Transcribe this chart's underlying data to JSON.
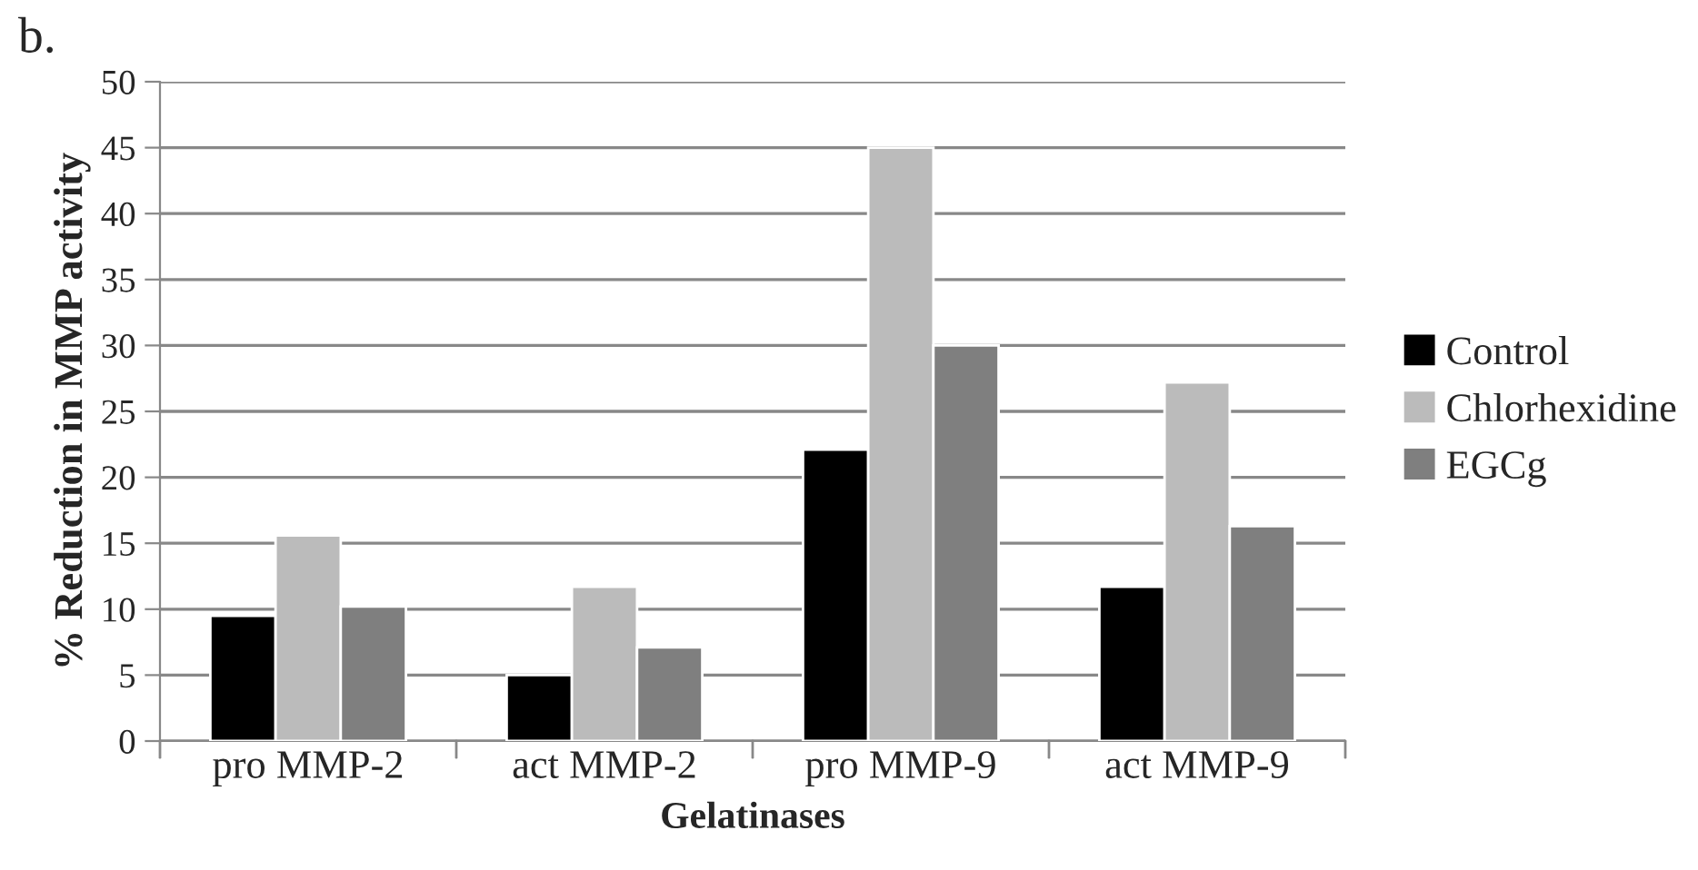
{
  "chart_data": {
    "type": "bar",
    "xlabel": "Gelatinases",
    "ylabel": "% Reduction in MMP activity",
    "annotations": [
      "b."
    ],
    "categories": [
      "pro MMP-2",
      "act MMP-2",
      "pro MMP-9",
      "act MMP-9"
    ],
    "series": [
      {
        "name": "Control",
        "color": "#000000",
        "values": [
          9.5,
          5.0,
          22.1,
          11.7
        ]
      },
      {
        "name": "Chlorhexidine",
        "color": "#bbbbbb",
        "values": [
          15.6,
          11.7,
          45,
          27.2
        ]
      },
      {
        "name": "EGCg",
        "color": "#7f7f7f",
        "values": [
          10.2,
          7.1,
          30,
          16.3
        ]
      }
    ],
    "ylim": [
      0,
      50
    ],
    "yticks": [
      0,
      5,
      10,
      15,
      20,
      25,
      30,
      35,
      40,
      45,
      50
    ],
    "grid": "y",
    "legend": "right"
  }
}
